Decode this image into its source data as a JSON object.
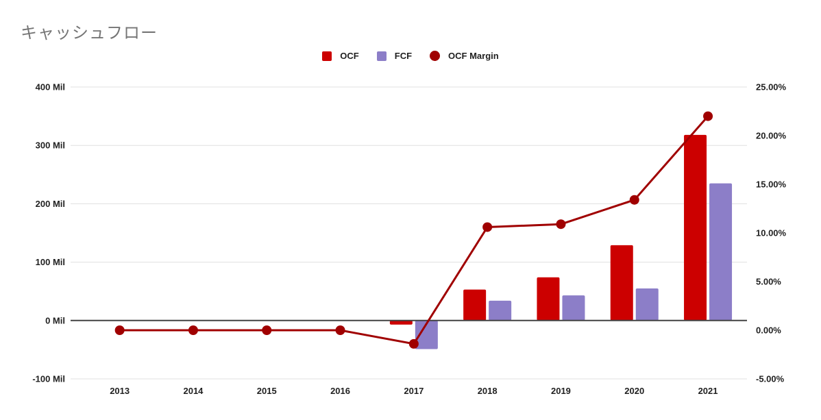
{
  "title": "キャッシュフロー",
  "legend": {
    "items": [
      {
        "label": "OCF",
        "color": "#cc0000",
        "shape": "square"
      },
      {
        "label": "FCF",
        "color": "#8c7ec8",
        "shape": "square"
      },
      {
        "label": "OCF Margin",
        "color": "#a00000",
        "shape": "circle"
      }
    ]
  },
  "chart_data": {
    "type": "combo",
    "title": "キャッシュフロー",
    "categories": [
      "2013",
      "2014",
      "2015",
      "2016",
      "2017",
      "2018",
      "2019",
      "2020",
      "2021"
    ],
    "series": [
      {
        "name": "OCF",
        "type": "bar",
        "axis": "left",
        "color": "#cc0000",
        "values": [
          0,
          0,
          0,
          0,
          -7,
          53,
          74,
          129,
          318
        ]
      },
      {
        "name": "FCF",
        "type": "bar",
        "axis": "left",
        "color": "#8c7ec8",
        "values": [
          0,
          0,
          0,
          0,
          -49,
          34,
          43,
          55,
          235
        ]
      },
      {
        "name": "OCF Margin",
        "type": "line",
        "axis": "right",
        "color": "#a00000",
        "values": [
          0,
          0,
          0,
          0,
          -1.4,
          10.6,
          10.9,
          13.4,
          22
        ]
      }
    ],
    "left_axis": {
      "unit": "Mil",
      "min": -100,
      "max": 400,
      "ticks": [
        {
          "value": 400,
          "label": "400 Mil"
        },
        {
          "value": 300,
          "label": "300 Mil"
        },
        {
          "value": 200,
          "label": "200 Mil"
        },
        {
          "value": 100,
          "label": "100 Mil"
        },
        {
          "value": 0,
          "label": "0 Mil"
        },
        {
          "value": -100,
          "label": "-100 Mil"
        }
      ]
    },
    "right_axis": {
      "unit": "%",
      "min": -5,
      "max": 25,
      "ticks": [
        {
          "value": 25,
          "label": "25.00%"
        },
        {
          "value": 20,
          "label": "20.00%"
        },
        {
          "value": 15,
          "label": "15.00%"
        },
        {
          "value": 10,
          "label": "10.00%"
        },
        {
          "value": 5,
          "label": "5.00%"
        },
        {
          "value": 0,
          "label": "0.00%"
        },
        {
          "value": -5,
          "label": "-5.00%"
        }
      ]
    },
    "grid": true,
    "legend_position": "top"
  },
  "colors": {
    "ocf_bar": "#cc0000",
    "fcf_bar": "#8c7ec8",
    "margin_line": "#a00000",
    "title_text": "#757575",
    "axis_text": "#212121",
    "gridline": "#e0e0e0",
    "zero_line": "#424242",
    "background": "#ffffff"
  }
}
